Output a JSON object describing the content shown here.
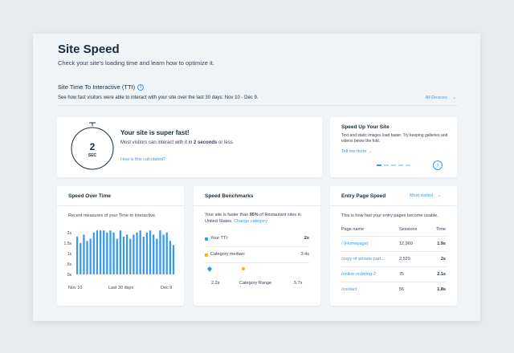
{
  "header": {
    "title": "Site Speed",
    "subtitle": "Check your site's loading time and learn how to optimize it."
  },
  "tti": {
    "title": "Site Time To Interactive (TTI)",
    "description": "See how fast visitors were able to interact with your site over the last 30 days: Nov 10 - Dec 9.",
    "devices_label": "All Devices"
  },
  "status_card": {
    "gauge_value": "2",
    "gauge_unit": "SEC",
    "headline": "Your site is super fast!",
    "body_before": "Most visitors can interact with it in ",
    "body_bold": "2 seconds",
    "body_after": " or less.",
    "link": "How is this calculated?"
  },
  "tips_card": {
    "title": "Speed Up Your Site",
    "body": "Text and static images load faster. Try keeping galleries and videos below the fold.",
    "link": "Tell me more",
    "link_arrow": "→",
    "next": "›",
    "dots": 5,
    "active_dot": 0
  },
  "speed_over_time": {
    "title": "Speed Over Time",
    "description": "Recent measures of your Time to Interactive.",
    "x_labels": [
      "Nov 10",
      "Last 30 days",
      "Dec 9"
    ]
  },
  "benchmarks": {
    "title": "Speed Benchmarks",
    "summary_before": "Your site is faster than ",
    "summary_bold": "95%",
    "summary_after": " of Restaurant sites in United States.",
    "change_link": "Change category",
    "your_label": "Your TTI:",
    "your_value": "2s",
    "category_label": "Category median:",
    "category_value": "3.4s",
    "scale_left": "2.2s",
    "scale_mid": "Category Range",
    "scale_right": "5.7s",
    "your_color": "#3899ec",
    "category_color": "#fdb10c"
  },
  "entry_pages": {
    "title": "Entry Page Speed",
    "filter": "Most visited",
    "description": "This is how fast your entry pages become usable.",
    "columns": [
      "Page name",
      "Sessions",
      "Time"
    ],
    "rows": [
      {
        "page": "/ (Homepage)",
        "sessions": "12,960",
        "time": "1.9s"
      },
      {
        "page": "/copy-of-private-part...",
        "sessions": "2,529",
        "time": "2s"
      },
      {
        "page": "/online-ordering-2",
        "sessions": "75",
        "time": "2.1s"
      },
      {
        "page": "/contact",
        "sessions": "56",
        "time": "1.8s"
      }
    ]
  },
  "colors": {
    "accent": "#3899ec",
    "bar": "#3899ec",
    "text": "#162d3d"
  },
  "chart_data": {
    "type": "bar",
    "title": "",
    "xlabel": "Last 30 days",
    "ylabel": "",
    "x_start": "Nov 10",
    "x_end": "Dec 9",
    "y_ticks": [
      "0s",
      ".5s",
      "1s",
      "1.5s",
      "2s"
    ],
    "ylim": [
      0,
      2.3
    ],
    "grid": false,
    "values": [
      1.8,
      1.5,
      1.9,
      1.6,
      1.7,
      2.0,
      2.1,
      2.1,
      2.1,
      2.0,
      2.1,
      2.0,
      1.7,
      2.1,
      1.8,
      1.9,
      1.7,
      1.9,
      2.0,
      2.1,
      1.8,
      2.0,
      2.1,
      1.9,
      1.7,
      2.1,
      1.9,
      2.0,
      1.6,
      1.4
    ]
  }
}
